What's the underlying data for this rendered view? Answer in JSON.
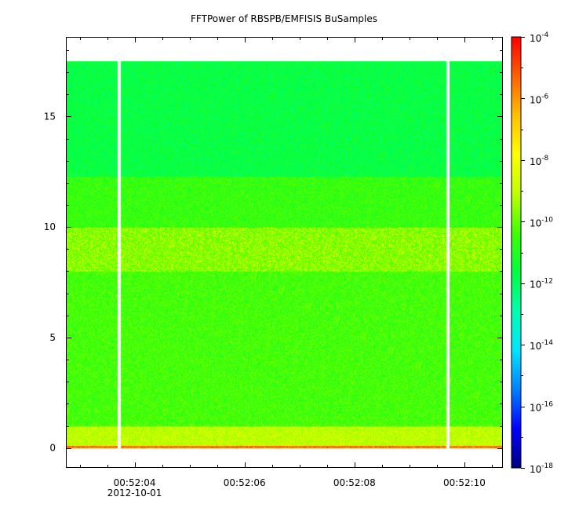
{
  "title": "FFTPower of RBSPB/EMFISIS  BuSamples",
  "chart_data": {
    "type": "heatmap",
    "title": "FFTPower of RBSPB/EMFISIS  BuSamples",
    "xlabel": "",
    "ylabel": "",
    "x_tick_labels": [
      "00:52:04",
      "00:52:06",
      "00:52:08",
      "00:52:10"
    ],
    "x_tick_seconds": [
      4,
      6,
      8,
      10
    ],
    "x_date_label": "2012-10-01",
    "xlim_seconds": [
      2.75,
      10.7
    ],
    "y_tick_labels": [
      "0",
      "5",
      "10",
      "15"
    ],
    "y_ticks": [
      0,
      5,
      10,
      15
    ],
    "ylim": [
      -0.9,
      18.6
    ],
    "data_y_max": 17.5,
    "gaps_seconds": [
      3.72,
      9.7
    ],
    "colorbar": {
      "scale": "log",
      "range": [
        1e-18,
        0.0001
      ],
      "tick_bases": [
        "10",
        "10",
        "10",
        "10",
        "10",
        "10",
        "10",
        "10"
      ],
      "tick_exponents": [
        "-4",
        "-6",
        "-8",
        "-10",
        "-12",
        "-14",
        "-16",
        "-18"
      ],
      "tick_values": [
        -4,
        -6,
        -8,
        -10,
        -12,
        -14,
        -16,
        -18
      ],
      "colormap": [
        "#00007f",
        "#0000ff",
        "#0080ff",
        "#00e5ff",
        "#00ffb0",
        "#00ff40",
        "#40ff00",
        "#c0ff00",
        "#ffff00",
        "#ffc000",
        "#ff6000",
        "#ff0000"
      ]
    },
    "bands": [
      {
        "y_from": 0,
        "y_to": 0.1,
        "log_power": -5.5
      },
      {
        "y_from": 0.1,
        "y_to": 1.0,
        "log_power": -9.0
      },
      {
        "y_from": 1.0,
        "y_to": 8.0,
        "log_power": -10.4
      },
      {
        "y_from": 8.0,
        "y_to": 10.0,
        "log_power": -9.8
      },
      {
        "y_from": 10.0,
        "y_to": 12.3,
        "log_power": -10.6
      },
      {
        "y_from": 12.3,
        "y_to": 17.5,
        "log_power": -11.6
      }
    ]
  }
}
